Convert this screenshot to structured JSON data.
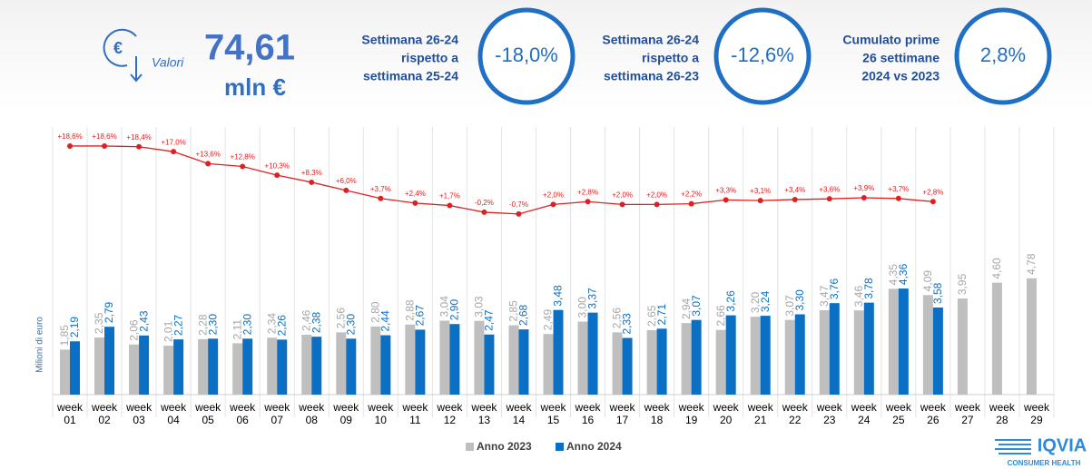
{
  "summary": {
    "icon_label": "Valori",
    "value": "74,61",
    "unit": "mln €"
  },
  "kpis": [
    {
      "label_lines": [
        "Settimana 26-24",
        "rispetto a",
        "settimana 25-24"
      ],
      "value": "-18,0%"
    },
    {
      "label_lines": [
        "Settimana 26-24",
        "rispetto a",
        "settimana 26-23"
      ],
      "value": "-12,6%"
    },
    {
      "label_lines": [
        "Cumulato prime",
        "26 settimane",
        "2024 vs 2023"
      ],
      "value": "2,8%"
    }
  ],
  "logo": {
    "name": "IQVIA",
    "subtitle": "CONSUMER HEALTH"
  },
  "chart_data": {
    "type": "bar",
    "y_label": "Milioni di euro",
    "categories": [
      "week 01",
      "week 02",
      "week 03",
      "week 04",
      "week 05",
      "week 06",
      "week 07",
      "week 08",
      "week 09",
      "week 10",
      "week 11",
      "week 12",
      "week 13",
      "week 14",
      "week 15",
      "week 16",
      "week 17",
      "week 18",
      "week 19",
      "week 20",
      "week 21",
      "week 22",
      "week 23",
      "week 24",
      "week 25",
      "week 26",
      "week 27",
      "week 28",
      "week 29"
    ],
    "ylim": [
      0,
      11
    ],
    "series": [
      {
        "name": "Anno 2023",
        "color": "#bfbfbf",
        "label_color": "#a6a6a6",
        "values": [
          1.85,
          2.35,
          2.06,
          2.01,
          2.28,
          2.11,
          2.34,
          2.46,
          2.56,
          2.8,
          2.88,
          3.04,
          3.03,
          2.85,
          2.49,
          3.0,
          2.56,
          2.65,
          2.94,
          2.66,
          3.2,
          3.07,
          3.47,
          3.46,
          4.35,
          4.09,
          3.95,
          4.6,
          4.78
        ],
        "value_labels": [
          "1,85",
          "2,35",
          "2,06",
          "2,01",
          "2,28",
          "2,11",
          "2,34",
          "2,46",
          "2,56",
          "2,80",
          "2,88",
          "3,04",
          "3,03",
          "2,85",
          "2,49",
          "3,00",
          "2,56",
          "2,65",
          "2,94",
          "2,66",
          "3,20",
          "3,07",
          "3,47",
          "3,46",
          "4,35",
          "4,09",
          "3,95",
          "4,60",
          "4,78"
        ]
      },
      {
        "name": "Anno 2024",
        "color": "#0b6fc4",
        "label_color": "#0b6fc4",
        "values": [
          2.19,
          2.79,
          2.43,
          2.27,
          2.3,
          2.3,
          2.26,
          2.38,
          2.3,
          2.44,
          2.67,
          2.9,
          2.47,
          2.68,
          3.48,
          3.37,
          2.33,
          2.71,
          3.07,
          3.26,
          3.24,
          3.3,
          3.76,
          3.78,
          4.36,
          3.58,
          null,
          null,
          null
        ],
        "value_labels": [
          "2,19",
          "2,79",
          "2,43",
          "2,27",
          "2,30",
          "2,30",
          "2,26",
          "2,38",
          "2,30",
          "2,44",
          "2,67",
          "2,90",
          "2,47",
          "2,68",
          "3,48",
          "3,37",
          "2,33",
          "2,71",
          "3,07",
          "3,26",
          "3,24",
          "3,30",
          "3,76",
          "3,78",
          "4,36",
          "3,58",
          null,
          null,
          null
        ]
      }
    ],
    "growth": {
      "color": "#e02020",
      "values": [
        18.6,
        18.6,
        18.4,
        17.0,
        13.6,
        12.8,
        10.3,
        8.3,
        6.0,
        3.7,
        2.4,
        1.7,
        -0.2,
        -0.7,
        2.0,
        2.8,
        2.0,
        2.0,
        2.2,
        3.3,
        3.1,
        3.4,
        3.6,
        3.9,
        3.7,
        2.8
      ],
      "value_labels": [
        "+18,6%",
        "+18,6%",
        "+18,4%",
        "+17,0%",
        "+13,6%",
        "+12,8%",
        "+10,3%",
        "+8,3%",
        "+6,0%",
        "+3,7%",
        "+2,4%",
        "+1,7%",
        "-0,2%",
        "-0,7%",
        "+2,0%",
        "+2,8%",
        "+2,0%",
        "+2,0%",
        "+2,2%",
        "+3,3%",
        "+3,1%",
        "+3,4%",
        "+3,6%",
        "+3,9%",
        "+3,7%",
        "+2,8%"
      ]
    },
    "y2lim": [
      -52,
      24
    ]
  }
}
